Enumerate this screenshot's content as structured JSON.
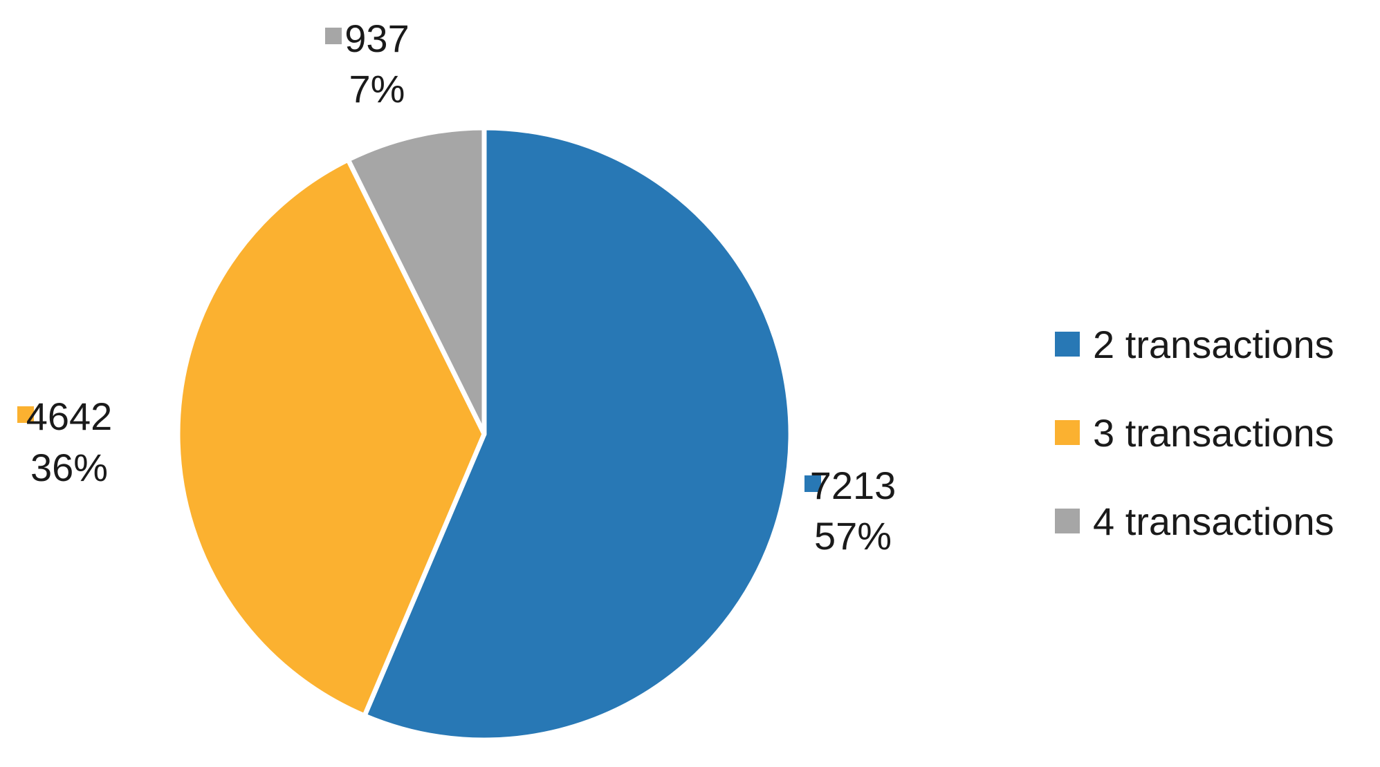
{
  "chart_data": {
    "type": "pie",
    "title": "",
    "legend_position": "right",
    "slices": [
      {
        "name": "2 transactions",
        "value": 7213,
        "percent_label": "57%",
        "color": "#2878b5"
      },
      {
        "name": "3 transactions",
        "value": 4642,
        "percent_label": "36%",
        "color": "#fbb130"
      },
      {
        "name": "4 transactions",
        "value": 937,
        "percent_label": "7%",
        "color": "#a6a6a6"
      }
    ]
  }
}
